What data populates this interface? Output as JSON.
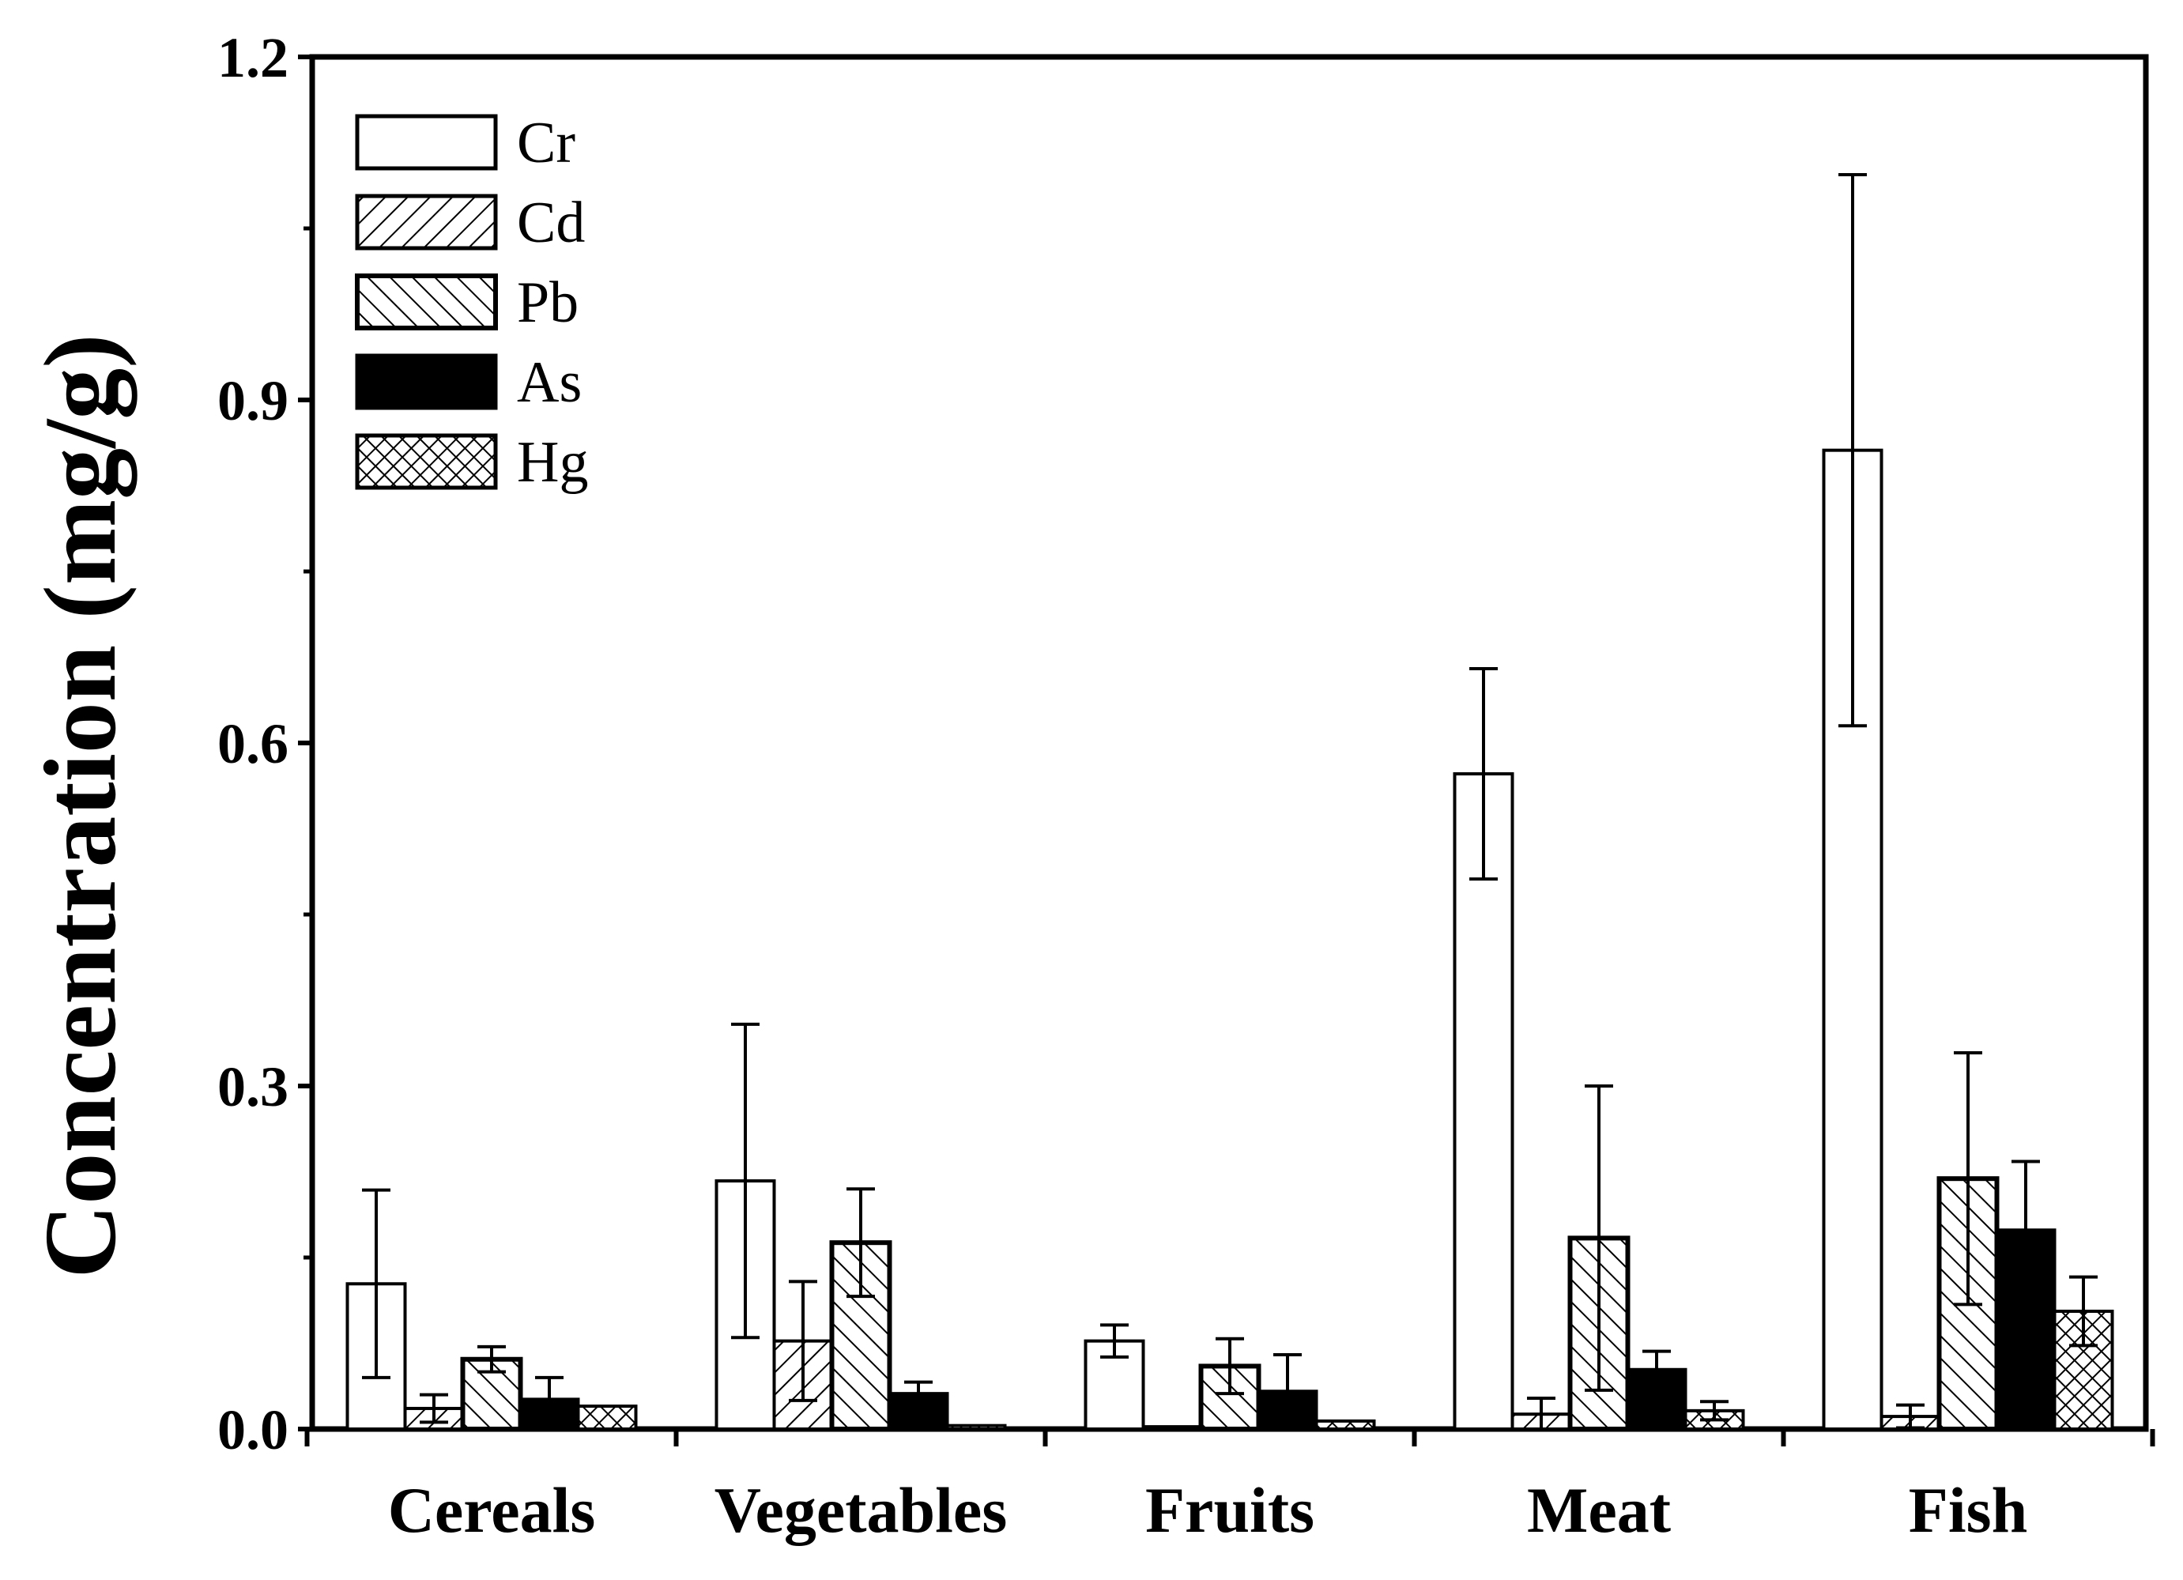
{
  "chart_data": {
    "type": "bar",
    "ylabel": "Concentration (mg/g)",
    "xlabel": "",
    "ylim": [
      0,
      1.2
    ],
    "yticks": [
      "0.0",
      "0.3",
      "0.6",
      "0.9",
      "1.2"
    ],
    "grid": false,
    "legend_position": "top-left",
    "categories": [
      "Cereals",
      "Vegetables",
      "Fruits",
      "Meat",
      "Fish"
    ],
    "series": [
      {
        "name": "Cr",
        "pattern": "none",
        "values": [
          0.127,
          0.217,
          0.077,
          0.573,
          0.856
        ],
        "errors": [
          0.082,
          0.137,
          0.014,
          0.092,
          0.241
        ]
      },
      {
        "name": "Cd",
        "pattern": "hatch-up",
        "values": [
          0.018,
          0.077,
          0.002,
          0.013,
          0.011
        ],
        "errors": [
          0.012,
          0.052,
          0.0,
          0.014,
          0.01
        ]
      },
      {
        "name": "Pb",
        "pattern": "hatch-down",
        "values": [
          0.061,
          0.163,
          0.055,
          0.167,
          0.219
        ],
        "errors": [
          0.011,
          0.047,
          0.024,
          0.133,
          0.11
        ]
      },
      {
        "name": "As",
        "pattern": "solid",
        "values": [
          0.026,
          0.031,
          0.033,
          0.052,
          0.174
        ],
        "errors": [
          0.019,
          0.01,
          0.032,
          0.016,
          0.06
        ]
      },
      {
        "name": "Hg",
        "pattern": "crosshatch",
        "values": [
          0.02,
          0.003,
          0.007,
          0.016,
          0.103
        ],
        "errors": [
          0.0,
          0.0,
          0.0,
          0.008,
          0.03
        ]
      }
    ]
  }
}
